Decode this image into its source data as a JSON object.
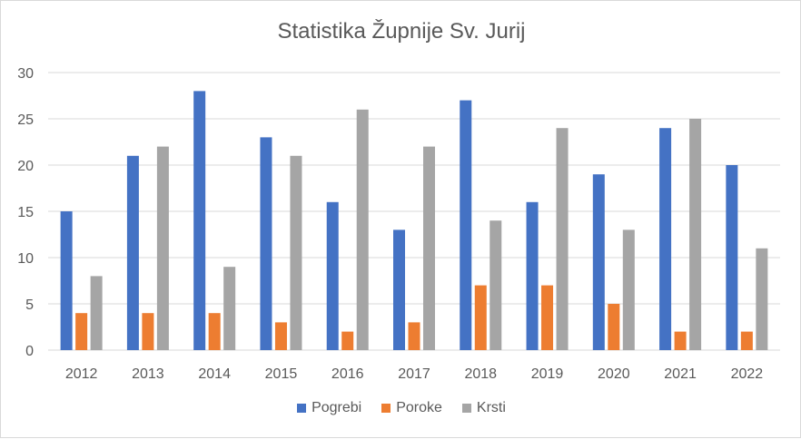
{
  "chart_data": {
    "type": "bar",
    "title": "Statistika Župnije Sv. Jurij",
    "categories": [
      "2012",
      "2013",
      "2014",
      "2015",
      "2016",
      "2017",
      "2018",
      "2019",
      "2020",
      "2021",
      "2022"
    ],
    "ylim": [
      0,
      30
    ],
    "yticks": [
      0,
      5,
      10,
      15,
      20,
      25,
      30
    ],
    "grid": true,
    "legend_position": "bottom",
    "series": [
      {
        "name": "Pogrebi",
        "color": "#4472c4",
        "values": [
          15,
          21,
          28,
          23,
          16,
          13,
          27,
          16,
          19,
          24,
          20
        ]
      },
      {
        "name": "Poroke",
        "color": "#ed7d31",
        "values": [
          4,
          4,
          4,
          3,
          2,
          3,
          7,
          7,
          5,
          2,
          2
        ]
      },
      {
        "name": "Krsti",
        "color": "#a5a5a5",
        "values": [
          8,
          22,
          9,
          21,
          26,
          22,
          14,
          24,
          13,
          25,
          11
        ]
      }
    ]
  }
}
